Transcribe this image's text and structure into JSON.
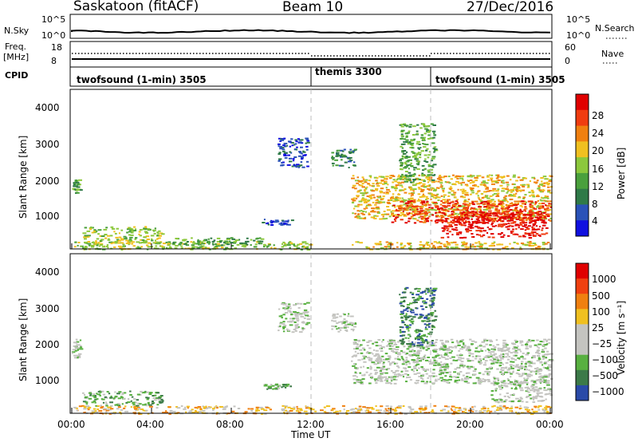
{
  "header": {
    "station": "Saskatoon (fitACF)",
    "beam": "Beam 10",
    "date": "27/Dec/2016"
  },
  "summary": {
    "nsky_label": "N.Sky",
    "nsky_ticks": [
      "10^5",
      "10^0"
    ],
    "nsearch_label": "N.Search",
    "nsearch_ticks": [
      "10^5",
      "10^0"
    ],
    "freq_label": "Freq.",
    "freq_unit": "[MHz]",
    "freq_ticks": [
      "18",
      "8"
    ],
    "nave_label": "Nave",
    "nave_ticks": [
      "60",
      "0"
    ],
    "cpid_label": "CPID",
    "cpid_segments": [
      {
        "label": "twofsound (1-min) 3505",
        "start_h": 0
      },
      {
        "label": "themis 3300",
        "start_h": 12
      },
      {
        "label": "twofsound (1-min) 3505",
        "start_h": 18
      }
    ]
  },
  "chart_data": [
    {
      "type": "heatmap",
      "name": "power",
      "ylabel": "Slant Range [km]",
      "yticks": [
        "4000",
        "3000",
        "2000",
        "1000"
      ],
      "ylim": [
        180,
        4500
      ],
      "xlim": [
        0,
        24
      ],
      "colorbar": {
        "label": "Power [dB]",
        "ticks": [
          "28",
          "24",
          "20",
          "16",
          "12",
          "8",
          "4"
        ],
        "colors": [
          "#1010e0",
          "#2a52b8",
          "#2f7a48",
          "#4aa03c",
          "#8cc83c",
          "#f0c020",
          "#f08010",
          "#f03c10",
          "#e00000"
        ]
      },
      "regions": [
        {
          "t": [
            0.0,
            0.4
          ],
          "r": [
            1700,
            2100
          ],
          "level": 3
        },
        {
          "t": [
            0.0,
            12.0
          ],
          "r": [
            180,
            400
          ],
          "level": 4
        },
        {
          "t": [
            0.5,
            4.5
          ],
          "r": [
            350,
            800
          ],
          "level": 4
        },
        {
          "t": [
            5.0,
            9.5
          ],
          "r": [
            300,
            500
          ],
          "level": 3
        },
        {
          "t": [
            9.5,
            11.0
          ],
          "r": [
            850,
            1000
          ],
          "level": 1
        },
        {
          "t": [
            10.3,
            11.8
          ],
          "r": [
            2400,
            3200
          ],
          "level": 1
        },
        {
          "t": [
            13.0,
            14.2
          ],
          "r": [
            2400,
            2900
          ],
          "level": 2
        },
        {
          "t": [
            14.0,
            24.0
          ],
          "r": [
            180,
            400
          ],
          "level": 5
        },
        {
          "t": [
            14.0,
            24.0
          ],
          "r": [
            1000,
            2200
          ],
          "level": 5
        },
        {
          "t": [
            16.0,
            24.0
          ],
          "r": [
            900,
            1500
          ],
          "level": 7
        },
        {
          "t": [
            18.5,
            23.8
          ],
          "r": [
            500,
            1200
          ],
          "level": 8
        },
        {
          "t": [
            16.4,
            18.2
          ],
          "r": [
            2000,
            3600
          ],
          "level": 3
        }
      ]
    },
    {
      "type": "heatmap",
      "name": "velocity",
      "ylabel": "Slant Range [km]",
      "yticks": [
        "4000",
        "3000",
        "2000",
        "1000"
      ],
      "ylim": [
        180,
        4500
      ],
      "xlim": [
        0,
        24
      ],
      "colorbar": {
        "label": "Velocity [m s⁻¹]",
        "ticks": [
          "1000",
          "500",
          "100",
          "25",
          "−25",
          "−100",
          "−500",
          "−1000"
        ],
        "colors": [
          "#2a4aa8",
          "#3c7a48",
          "#58b040",
          "#c4c4c0",
          "#c4c4c0",
          "#f0c020",
          "#f08010",
          "#f04010",
          "#e00000"
        ]
      },
      "regions": [
        {
          "t": [
            0.0,
            0.4
          ],
          "r": [
            1700,
            2200
          ],
          "level": 3
        },
        {
          "t": [
            0.0,
            24.0
          ],
          "r": [
            180,
            400
          ],
          "level": 5
        },
        {
          "t": [
            0.5,
            4.5
          ],
          "r": [
            400,
            800
          ],
          "level": 2
        },
        {
          "t": [
            9.5,
            11.0
          ],
          "r": [
            850,
            1000
          ],
          "level": 2
        },
        {
          "t": [
            10.3,
            11.8
          ],
          "r": [
            2400,
            3200
          ],
          "level": 3
        },
        {
          "t": [
            13.0,
            14.2
          ],
          "r": [
            2400,
            2900
          ],
          "level": 3
        },
        {
          "t": [
            14.0,
            24.0
          ],
          "r": [
            1000,
            2200
          ],
          "level": 3
        },
        {
          "t": [
            16.4,
            18.2
          ],
          "r": [
            2000,
            3600
          ],
          "level": 1
        },
        {
          "t": [
            21.0,
            24.0
          ],
          "r": [
            500,
            1100
          ],
          "level": 3
        }
      ]
    }
  ],
  "x_axis": {
    "ticks": [
      "00:00",
      "04:00",
      "08:00",
      "12:00",
      "16:00",
      "20:00",
      "00:00"
    ],
    "label": "Time UT"
  }
}
